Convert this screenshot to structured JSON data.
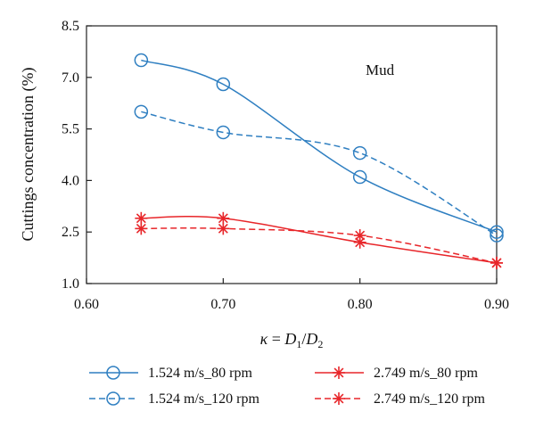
{
  "chart_data": {
    "type": "line",
    "xlabel": "κ = D₁/D₂",
    "ylabel": "Cuttings concentration (%)",
    "xlim": [
      0.6,
      0.9
    ],
    "ylim": [
      1.0,
      8.5
    ],
    "xticks": [
      "0.60",
      "0.70",
      "0.80",
      "0.90"
    ],
    "yticks": [
      "1.0",
      "2.5",
      "4.0",
      "5.5",
      "7.0",
      "8.5"
    ],
    "annotation": "Mud",
    "grid": false,
    "legend_position": "bottom",
    "series": [
      {
        "name": "1.524 m/s_80 rpm",
        "x": [
          0.64,
          0.7,
          0.8,
          0.9
        ],
        "y": [
          7.5,
          6.8,
          4.1,
          2.5
        ],
        "color": "#2f7fc1",
        "dash": "solid",
        "marker": "circle"
      },
      {
        "name": "1.524 m/s_120 rpm",
        "x": [
          0.64,
          0.7,
          0.8,
          0.9
        ],
        "y": [
          6.0,
          5.4,
          4.8,
          2.4
        ],
        "color": "#2f7fc1",
        "dash": "dashed",
        "marker": "circle"
      },
      {
        "name": "2.749 m/s_80 rpm",
        "x": [
          0.64,
          0.7,
          0.8,
          0.9
        ],
        "y": [
          2.9,
          2.9,
          2.2,
          1.6
        ],
        "color": "#e8262a",
        "dash": "solid",
        "marker": "asterisk"
      },
      {
        "name": "2.749 m/s_120 rpm",
        "x": [
          0.64,
          0.7,
          0.8,
          0.9
        ],
        "y": [
          2.6,
          2.6,
          2.4,
          1.6
        ],
        "color": "#e8262a",
        "dash": "dashed",
        "marker": "asterisk"
      }
    ]
  }
}
